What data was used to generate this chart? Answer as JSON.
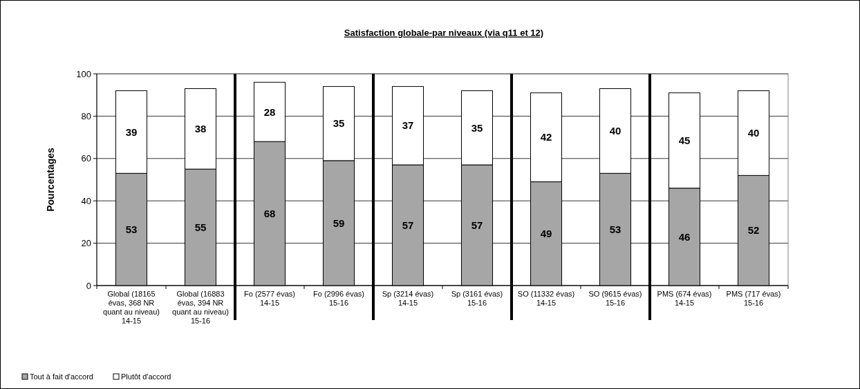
{
  "chart_data": {
    "type": "bar",
    "stacked": true,
    "title": "Satisfaction globale-par niveaux (via q11 et 12)",
    "ylabel": "Pourcentages",
    "categories": [
      "Global (18165 évas, 368 NR quant au niveau) 14-15",
      "Global (16883 évas, 394 NR quant au niveau) 15-16",
      "Fo (2577 évas) 14-15",
      "Fo (2996 évas) 15-16",
      "Sp (3214 évas) 14-15",
      "Sp (3161 évas) 15-16",
      "SO (11332 évas) 14-15",
      "SO (9615 évas) 15-16",
      "PMS (674 évas) 14-15",
      "PMS (717 évas) 15-16"
    ],
    "series": [
      {
        "name": "Tout à fait d'accord",
        "color": "#a6a6a6",
        "values": [
          53,
          55,
          68,
          59,
          57,
          57,
          49,
          53,
          46,
          52
        ]
      },
      {
        "name": "Plutôt d'accord",
        "color": "#ffffff",
        "values": [
          39,
          38,
          28,
          35,
          37,
          35,
          42,
          40,
          45,
          40
        ]
      }
    ],
    "ylim": [
      0,
      100
    ],
    "yticks": [
      0,
      20,
      40,
      60,
      80,
      100
    ],
    "grid": "y",
    "legend": "bottom left",
    "data_labels": true
  }
}
